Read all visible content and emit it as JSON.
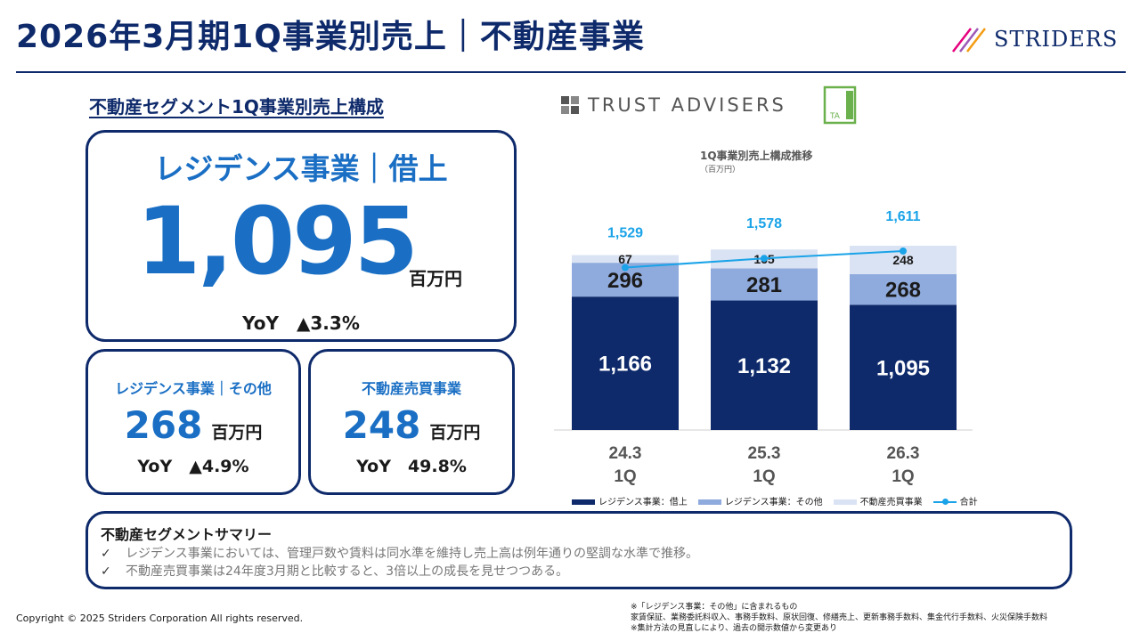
{
  "header": {
    "title": "2026年3月期1Q事業別売上｜不動産事業",
    "logo_text": "STRIDERS"
  },
  "segment_heading": "不動産セグメント1Q事業別売上構成",
  "main_card": {
    "title": "レジデンス事業｜借上",
    "value": "1,095",
    "unit": "百万円",
    "yoy": "YoY　▲3.3%"
  },
  "sub_cards": [
    {
      "title": "レジデンス事業｜その他",
      "value": "268",
      "unit": "百万円",
      "yoy": "YoY　▲4.9%"
    },
    {
      "title": "不動産売買事業",
      "value": "248",
      "unit": "百万円",
      "yoy": "YoY　49.8%"
    }
  ],
  "partner": {
    "name": "TRUST ADVISERS",
    "badge": "TA"
  },
  "chart_title": "1Q事業別売上構成推移",
  "chart_unit": "（百万円）",
  "chart_data": {
    "type": "bar",
    "stacked": true,
    "categories": [
      "24.3\n1Q",
      "25.3\n1Q",
      "26.3\n1Q"
    ],
    "category_lines": [
      [
        "24.3",
        "1Q"
      ],
      [
        "25.3",
        "1Q"
      ],
      [
        "26.3",
        "1Q"
      ]
    ],
    "series": [
      {
        "name": "レジデンス事業：借上",
        "values": [
          1166,
          1132,
          1095
        ],
        "color": "#0e2a6b"
      },
      {
        "name": "レジデンス事業：その他",
        "values": [
          296,
          281,
          268
        ],
        "color": "#8faadc"
      },
      {
        "name": "不動産売買事業",
        "values": [
          67,
          165,
          248
        ],
        "color": "#dae3f3"
      }
    ],
    "total": {
      "name": "合計",
      "values": [
        1529,
        1578,
        1611
      ],
      "color": "#1aa3e8"
    },
    "value_labels": {
      "借上": [
        "1,166",
        "1,132",
        "1,095"
      ],
      "その他": [
        "296",
        "281",
        "268"
      ],
      "売買": [
        "67",
        "165",
        "248"
      ],
      "合計": [
        "1,529",
        "1,578",
        "1,611"
      ]
    },
    "ylim": [
      0,
      1900
    ]
  },
  "summary": {
    "title": "不動産セグメントサマリー",
    "items": [
      "レジデンス事業においては、管理戸数や賃料は同水準を維持し売上高は例年通りの堅調な水準で推移。",
      "不動産売買事業は24年度3月期と比較すると、3倍以上の成長を見せつつある。"
    ],
    "check": "✓"
  },
  "footer": {
    "copyright": "Copyright © 2025 Striders Corporation All rights reserved.",
    "notes": [
      "※「レジデンス事業：その他」に含まれるもの",
      "家賃保証、業務委託料収入、事務手数料、原状回復、修繕売上、更新事務手数料、集金代行手数料、火災保険手数料",
      "※集計方法の見直しにより、過去の開示数値から変更あり"
    ]
  }
}
